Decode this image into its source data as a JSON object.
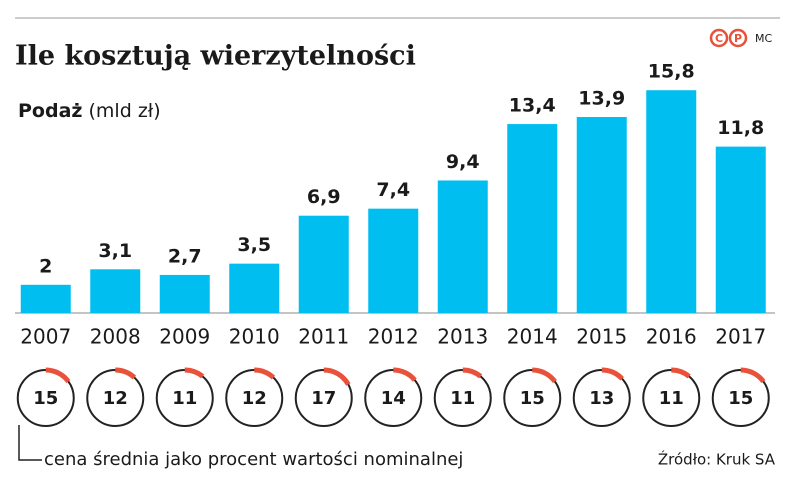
{
  "chart_data": [
    {
      "type": "bar",
      "title": "Ile kosztują wierzytelności",
      "subtitle": "Podaż",
      "unit": "(mld zł)",
      "credit": "MC",
      "logo": [
        "C",
        "P"
      ],
      "source": "Źródło: Kruk SA",
      "color": "#00bff0",
      "categories": [
        "2007",
        "2008",
        "2009",
        "2010",
        "2011",
        "2012",
        "2013",
        "2014",
        "2015",
        "2016",
        "2017"
      ],
      "values": [
        2,
        3.1,
        2.7,
        3.5,
        6.9,
        7.4,
        9.4,
        13.4,
        13.9,
        15.8,
        11.8
      ],
      "value_labels": [
        "2",
        "3,1",
        "2,7",
        "3,5",
        "6,9",
        "7,4",
        "9,4",
        "13,4",
        "13,9",
        "15,8",
        "11,8"
      ]
    },
    {
      "type": "gauge",
      "label": "cena średnia jako procent wartości nominalnej",
      "color": "#e8513a",
      "values": [
        15,
        12,
        11,
        12,
        17,
        14,
        11,
        15,
        13,
        11,
        15
      ]
    }
  ]
}
